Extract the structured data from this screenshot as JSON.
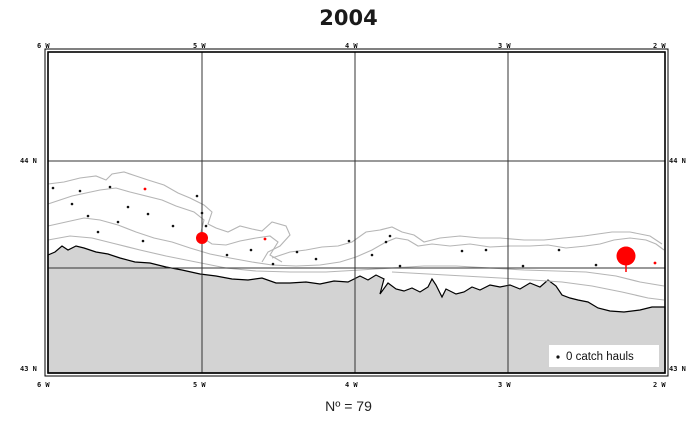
{
  "title": "2004",
  "longitude_labels": [
    "6 W",
    "5 W",
    "4 W",
    "3 W",
    "2 W"
  ],
  "latitude_labels": [
    "44 N",
    "43 N"
  ],
  "legend": {
    "label": "0 catch hauls"
  },
  "count_label": "Nº =  79",
  "colors": {
    "land": "#d3d3d3",
    "catch": "#ff0000",
    "zero": "#111111",
    "isobath": "#b5b5b5"
  }
}
